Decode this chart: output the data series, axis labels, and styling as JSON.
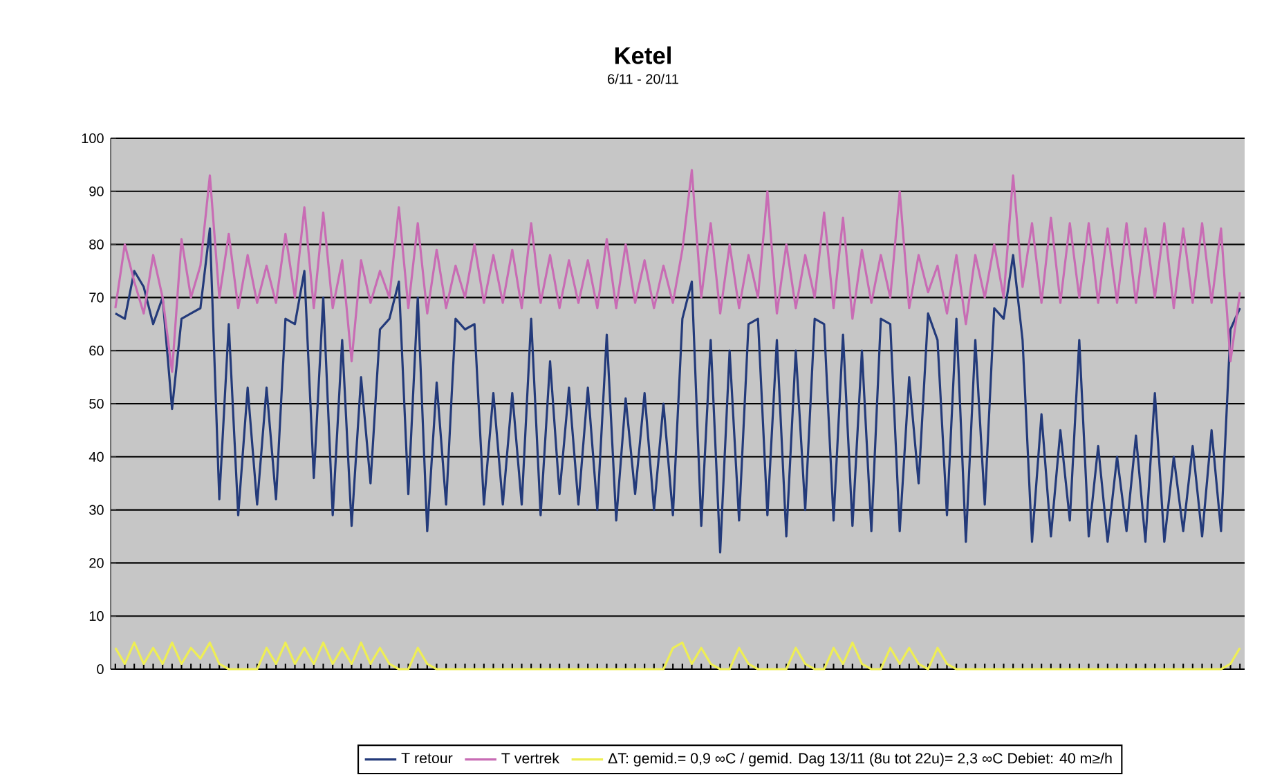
{
  "chart_data": {
    "type": "line",
    "title": "Ketel",
    "subtitle": "6/11 - 20/11",
    "categories": [
      null,
      null,
      null,
      null,
      null,
      null,
      null,
      null,
      null,
      null,
      null,
      null,
      null,
      null,
      null,
      null,
      null,
      null,
      null,
      null,
      null,
      null,
      null,
      null,
      null,
      null,
      null,
      null,
      null,
      null,
      null,
      null,
      null,
      null,
      null,
      null,
      null,
      null,
      null,
      null,
      null,
      null,
      null,
      null,
      null,
      null,
      null,
      null,
      null,
      null,
      null,
      null,
      null,
      null,
      null,
      null,
      null,
      null,
      null,
      null,
      null,
      null,
      null,
      null,
      null,
      null,
      null,
      null,
      null,
      null,
      null,
      null,
      null,
      null,
      null,
      null,
      null,
      null,
      null,
      null,
      null,
      null,
      null,
      null,
      null,
      null,
      null,
      null,
      null,
      null,
      null,
      null,
      null,
      null,
      null,
      null,
      null,
      null,
      null,
      null,
      null,
      null,
      null,
      null,
      null,
      null,
      null,
      null,
      null,
      null,
      null,
      null,
      null,
      null,
      null,
      null,
      null,
      null,
      null,
      null
    ],
    "ylim": [
      0,
      100
    ],
    "yticks": [
      0,
      10,
      20,
      30,
      40,
      50,
      60,
      70,
      80,
      90,
      100
    ],
    "grid": "y",
    "legend": "bottom",
    "series": [
      {
        "name": "T retour",
        "color": "#233a7a",
        "values": [
          67,
          66,
          75,
          72,
          65,
          70,
          49,
          66,
          67,
          68,
          83,
          32,
          65,
          29,
          53,
          31,
          53,
          32,
          66,
          65,
          75,
          36,
          70,
          29,
          62,
          27,
          55,
          35,
          64,
          66,
          73,
          33,
          70,
          26,
          54,
          31,
          66,
          64,
          65,
          31,
          52,
          31,
          52,
          31,
          66,
          29,
          58,
          33,
          53,
          31,
          53,
          30,
          63,
          28,
          51,
          33,
          52,
          30,
          50,
          29,
          66,
          73,
          27,
          62,
          22,
          60,
          28,
          65,
          66,
          29,
          62,
          25,
          60,
          30,
          66,
          65,
          28,
          63,
          27,
          60,
          26,
          66,
          65,
          26,
          55,
          35,
          67,
          62,
          29,
          66,
          24,
          62,
          31,
          68,
          66,
          78,
          62,
          24,
          48,
          25,
          45,
          28,
          62,
          25,
          42,
          24,
          40,
          26,
          44,
          24,
          52,
          24,
          40,
          26,
          42,
          25,
          45,
          26,
          64,
          68
        ]
      },
      {
        "name": "T vertrek",
        "color": "#c86cb4",
        "values": [
          68,
          80,
          73,
          67,
          78,
          70,
          56,
          81,
          70,
          76,
          93,
          70,
          82,
          68,
          78,
          69,
          76,
          69,
          82,
          70,
          87,
          68,
          86,
          68,
          77,
          58,
          77,
          69,
          75,
          70,
          87,
          68,
          84,
          67,
          79,
          68,
          76,
          70,
          80,
          69,
          78,
          69,
          79,
          68,
          84,
          69,
          78,
          68,
          77,
          69,
          77,
          68,
          81,
          68,
          80,
          69,
          77,
          68,
          76,
          69,
          79,
          94,
          70,
          84,
          67,
          80,
          68,
          78,
          70,
          90,
          67,
          80,
          68,
          78,
          70,
          86,
          68,
          85,
          66,
          79,
          69,
          78,
          70,
          90,
          68,
          78,
          71,
          76,
          67,
          78,
          65,
          78,
          70,
          80,
          70,
          93,
          72,
          84,
          69,
          85,
          69,
          84,
          70,
          84,
          69,
          83,
          69,
          84,
          69,
          83,
          70,
          84,
          68,
          83,
          69,
          84,
          69,
          83,
          58,
          71
        ]
      },
      {
        "name": "ΔT: gemid.= 0,9 ∞C / gemid. Dag 13/11 (8u tot 22u)= 2,3 ∞C Debiet: 40 m≥/h",
        "color": "#eeee55",
        "values": [
          4,
          1,
          5,
          1,
          4,
          1,
          5,
          1,
          4,
          2,
          5,
          1,
          0,
          0,
          0,
          0,
          4,
          1,
          5,
          1,
          4,
          1,
          5,
          1,
          4,
          1,
          5,
          1,
          4,
          1,
          0,
          0,
          4,
          1,
          0,
          0,
          0,
          0,
          0,
          0,
          0,
          0,
          0,
          0,
          0,
          0,
          0,
          0,
          0,
          0,
          0,
          0,
          0,
          0,
          0,
          0,
          0,
          0,
          0,
          4,
          5,
          1,
          4,
          1,
          0,
          0,
          4,
          1,
          0,
          0,
          0,
          0,
          4,
          1,
          0,
          0,
          4,
          1,
          5,
          1,
          0,
          0,
          4,
          1,
          4,
          1,
          0,
          4,
          1,
          0,
          0,
          0,
          0,
          0,
          0,
          0,
          0,
          0,
          0,
          0,
          0,
          0,
          0,
          0,
          0,
          0,
          0,
          0,
          0,
          0,
          0,
          0,
          0,
          0,
          0,
          0,
          0,
          0,
          1,
          4
        ]
      }
    ]
  }
}
